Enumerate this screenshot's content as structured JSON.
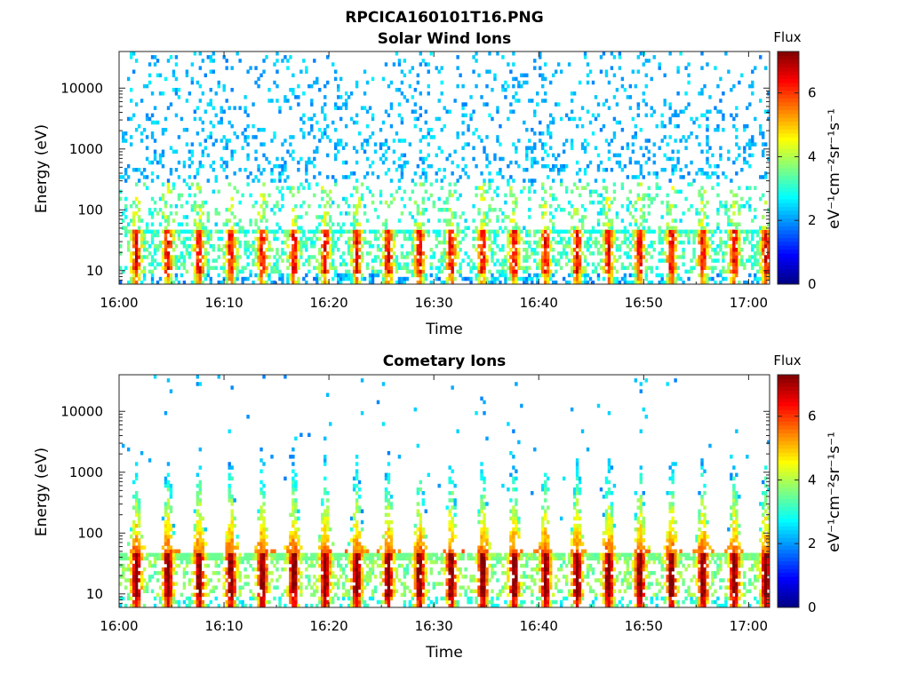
{
  "figure": {
    "title": "RPCICA160101T16.PNG"
  },
  "colors": {
    "colormap": [
      "#00007f",
      "#0000ff",
      "#007fff",
      "#00ffff",
      "#7fff7f",
      "#ffff00",
      "#ff7f00",
      "#ff0000",
      "#7f0000"
    ],
    "axis": "#262626",
    "background": "#ffffff"
  },
  "chart_data": [
    {
      "type": "heatmap",
      "title": "Solar Wind Ions",
      "xlabel": "Time",
      "ylabel": "Energy (eV)",
      "xlim": [
        "16:00",
        "17:02"
      ],
      "x_ticks": [
        "16:00",
        "16:10",
        "16:20",
        "16:30",
        "16:40",
        "16:50",
        "17:00"
      ],
      "ylim": [
        6,
        40000
      ],
      "y_scale": "log",
      "y_ticks": [
        10,
        100,
        1000,
        10000
      ],
      "y_tick_labels": [
        "10",
        "100",
        "1000",
        "10000"
      ],
      "colorbar": {
        "label": "Flux",
        "units": "eV⁻¹cm⁻²sr⁻¹s⁻¹",
        "range": [
          0,
          7.3
        ],
        "ticks": [
          0,
          2,
          4,
          6
        ],
        "tick_labels": [
          "0",
          "2",
          "4",
          "6"
        ]
      },
      "description_values": {
        "low_energy_band_eV": [
          7,
          45
        ],
        "low_energy_flux_peak": 6,
        "burst_period_min": 3,
        "sparse_background_flux": 2.2
      }
    },
    {
      "type": "heatmap",
      "title": "Cometary Ions",
      "xlabel": "Time",
      "ylabel": "Energy (eV)",
      "xlim": [
        "16:00",
        "17:02"
      ],
      "x_ticks": [
        "16:00",
        "16:10",
        "16:20",
        "16:30",
        "16:40",
        "16:50",
        "17:00"
      ],
      "ylim": [
        6,
        40000
      ],
      "y_scale": "log",
      "y_ticks": [
        10,
        100,
        1000,
        10000
      ],
      "y_tick_labels": [
        "10",
        "100",
        "1000",
        "10000"
      ],
      "colorbar": {
        "label": "Flux",
        "units": "eV⁻¹cm⁻²sr⁻¹s⁻¹",
        "range": [
          0,
          7.3
        ],
        "ticks": [
          0,
          2,
          4,
          6
        ],
        "tick_labels": [
          "0",
          "2",
          "4",
          "6"
        ]
      },
      "description_values": {
        "low_energy_band_eV": [
          7,
          45
        ],
        "low_energy_flux_peak": 7,
        "burst_period_min": 3,
        "burst_max_energy_eV": 2000
      }
    }
  ]
}
